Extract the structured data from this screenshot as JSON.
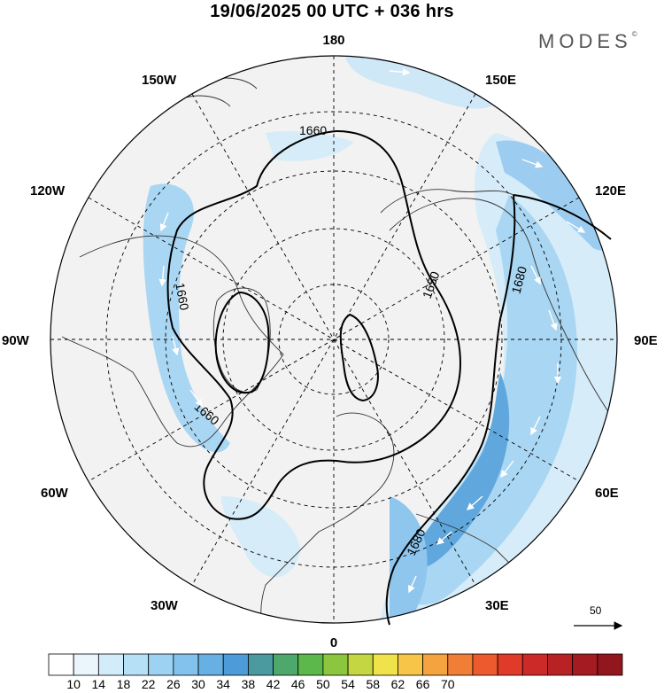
{
  "title": "19/06/2025  00 UTC  + 036 hrs",
  "brand": "MODES",
  "brand_mark": "©",
  "longitude_labels": {
    "n": "180",
    "ne": "150E",
    "e1": "120E",
    "e2": "90E",
    "e3": "60E",
    "se": "30E",
    "s": "0",
    "sw": "30W",
    "w1": "60W",
    "w2": "90W",
    "w3": "120W",
    "nw": "150W"
  },
  "contour_labels": [
    "1660",
    "1660",
    "1660",
    "1650",
    "1680",
    "1680"
  ],
  "reference_vector": {
    "label": "50",
    "icon": "arrow-right-icon"
  },
  "colorbar": {
    "ticks": [
      "10",
      "14",
      "18",
      "22",
      "26",
      "30",
      "34",
      "38",
      "42",
      "46",
      "50",
      "54",
      "58",
      "62",
      "66",
      "70"
    ],
    "colors": [
      "#ffffff",
      "#eaf5fc",
      "#d2ecfa",
      "#b6e0f6",
      "#9dd2f2",
      "#82c2ec",
      "#67b0e4",
      "#4d9bd8",
      "#4a9aa0",
      "#4fa86b",
      "#5cb84a",
      "#8cc63e",
      "#c4d642",
      "#f0e24a",
      "#f7c547",
      "#f5a33e",
      "#f17e36",
      "#ec5a2e",
      "#e03a2a",
      "#cc2a28",
      "#b82224",
      "#a41c22",
      "#92161e"
    ]
  }
}
